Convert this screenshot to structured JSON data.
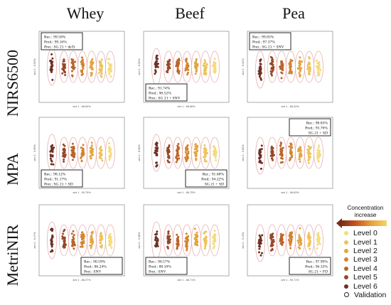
{
  "columns": [
    "Whey",
    "Beef",
    "Pea"
  ],
  "rows": [
    "NIRS6500",
    "MPA",
    "MetriNIR"
  ],
  "legend": {
    "title": "Concentration increase",
    "items": [
      {
        "label": "Level 0",
        "color": "#f3dd7a"
      },
      {
        "label": "Level 1",
        "color": "#ecc45a"
      },
      {
        "label": "Level 2",
        "color": "#e3a53f"
      },
      {
        "label": "Level 3",
        "color": "#d4832e"
      },
      {
        "label": "Level 4",
        "color": "#b9652a"
      },
      {
        "label": "Level 5",
        "color": "#94482a"
      },
      {
        "label": "Level 6",
        "color": "#6d3024"
      },
      {
        "label": "Validation",
        "color": "#ffffff"
      }
    ]
  },
  "chart_data": [
    {
      "type": "scatter",
      "row": "NIRS6500",
      "column": "Whey",
      "xlabel": "xmi 1 - 88.60%",
      "ylabel": "xmi 2 - 5.92%",
      "annotation": [
        "Rec.: 99.50%",
        "Pred.: 99.16%",
        "Pret.: SG 21 + deTr"
      ],
      "box": "top-left"
    },
    {
      "type": "scatter",
      "row": "NIRS6500",
      "column": "Beef",
      "xlabel": "xmi 1 - 86.86%",
      "ylabel": "xmi 2 - 5.52%",
      "annotation": [
        "Rec.: 91.74%",
        "Pred.: 90.52%",
        "Pret.: SG 21 + SNV"
      ],
      "box": "bottom-left"
    },
    {
      "type": "scatter",
      "row": "NIRS6500",
      "column": "Pea",
      "xlabel": "xmi 1 - 88.34%",
      "ylabel": "xmi 2 - 5.32%",
      "annotation": [
        "Rec.: 99.05%",
        "Pred.: 97.37%",
        "Pret.: SG 21 + SNV"
      ],
      "box": "top-left"
    },
    {
      "type": "scatter",
      "row": "MPA",
      "column": "Whey",
      "xlabel": "xmi 1 - 90.75%",
      "ylabel": "xmi 2 - 3.05%",
      "annotation": [
        "Rec.: 98.12%",
        "Pred.: 91.17%",
        "Pret.: SG 21 + SD"
      ],
      "box": "bottom-left"
    },
    {
      "type": "scatter",
      "row": "MPA",
      "column": "Beef",
      "xlabel": "xmi 1 - 86.75%",
      "ylabel": "xmi 2 - 8.55%",
      "annotation": [
        "Rec.: 91.68%",
        "Pred.: 94.22%",
        "SG 21 + SD"
      ],
      "box": "bottom-right"
    },
    {
      "type": "scatter",
      "row": "MPA",
      "column": "Pea",
      "xlabel": "xmi 1 - 98.63%",
      "ylabel": "xmi 2 - 0.82%",
      "annotation": [
        "Rec.: 98.83%",
        "Pred.: 93.76%",
        "SG 21 + SD"
      ],
      "box": "top-right"
    },
    {
      "type": "scatter",
      "row": "MetriNIR",
      "column": "Whey",
      "xlabel": "xmi 1 - 86.07%",
      "ylabel": "xmi 2 - 6.47%",
      "annotation": [
        "Rec.: 90.59%",
        "Pred.: 86.24%",
        "Pret.: SNV"
      ],
      "box": "bottom-right"
    },
    {
      "type": "scatter",
      "row": "MetriNIR",
      "column": "Beef",
      "xlabel": "xmi 1 - 86.71%",
      "ylabel": "xmi 2 - 9.38%",
      "annotation": [
        "Rec.: 90.57%",
        "Pred.: 88.10%",
        "Pret.: SNV"
      ],
      "box": "bottom-left"
    },
    {
      "type": "scatter",
      "row": "MetriNIR",
      "column": "Pea",
      "xlabel": "xmi 1 - 90.71%",
      "ylabel": "xmi 2 - 5.13%",
      "annotation": [
        "Rec.: 97.99%",
        "Pred.: 96.33%",
        "SG 21 + FD"
      ],
      "box": "bottom-right"
    }
  ]
}
